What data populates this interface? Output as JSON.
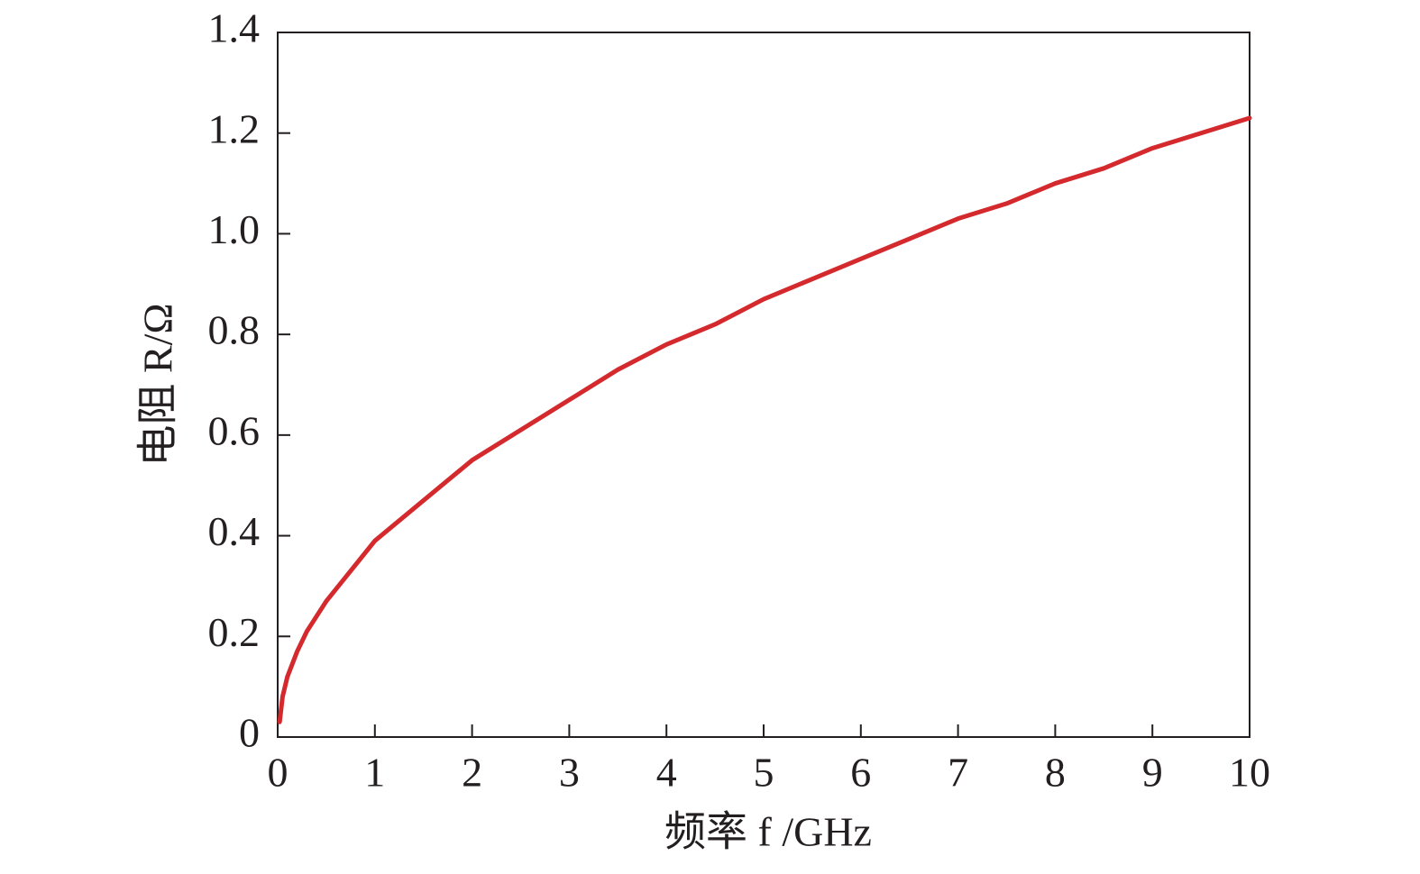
{
  "chart_data": {
    "type": "line",
    "x_label": "频率 f /GHz",
    "y_label": "电阻 R/Ω",
    "x": [
      0.02,
      0.05,
      0.1,
      0.2,
      0.3,
      0.5,
      0.75,
      1,
      1.5,
      2,
      2.5,
      3,
      3.5,
      4,
      4.5,
      5,
      5.5,
      6,
      6.5,
      7,
      7.5,
      8,
      8.5,
      9,
      9.5,
      10
    ],
    "values": [
      0.03,
      0.08,
      0.12,
      0.17,
      0.21,
      0.27,
      0.33,
      0.39,
      0.47,
      0.55,
      0.61,
      0.67,
      0.73,
      0.78,
      0.82,
      0.87,
      0.91,
      0.95,
      0.99,
      1.03,
      1.06,
      1.1,
      1.13,
      1.17,
      1.2,
      1.23
    ],
    "color": "#d42a2e",
    "xlim": [
      0,
      10
    ],
    "xticks": [
      0,
      1,
      2,
      3,
      4,
      5,
      6,
      7,
      8,
      9,
      10
    ],
    "ylim": [
      0,
      1.4
    ],
    "yticks": [
      0,
      0.2,
      0.4,
      0.6,
      0.8,
      {
        "value": 1,
        "label": "1.0"
      },
      1.2,
      1.4
    ],
    "grid": false
  }
}
